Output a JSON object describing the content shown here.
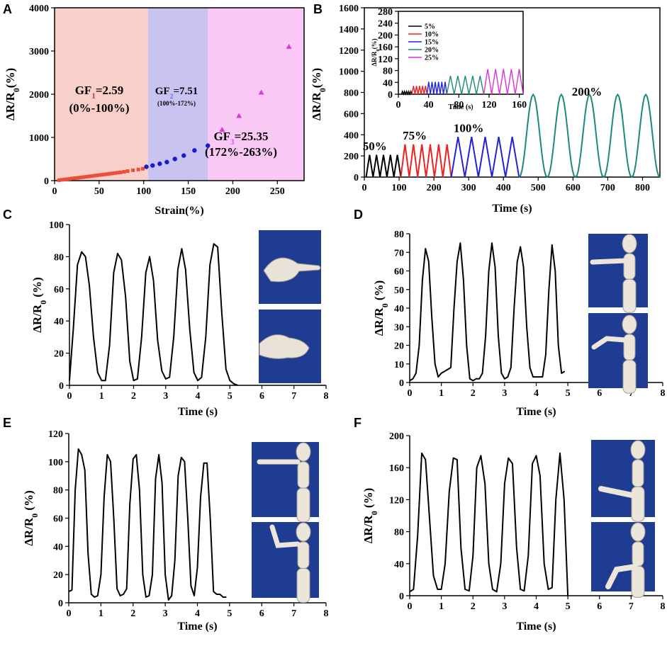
{
  "panels": {
    "A": "A",
    "B": "B",
    "C": "C",
    "D": "D",
    "E": "E",
    "F": "F"
  },
  "colors": {
    "region1": "#f9cfc9",
    "region2": "#c9c3f2",
    "region3": "#f9c8f5",
    "gf1": "#cc3333",
    "gf2": "#6666ee",
    "gf3": "#dd55dd",
    "red": "#e8503a",
    "blue": "#1a1ad0",
    "magenta": "#d83bd8",
    "black": "#000000",
    "r10": "#ee2222",
    "b15": "#2222dd",
    "t20": "#1a8a7a",
    "m25": "#dd33dd",
    "photo": "#1f3c93"
  },
  "chart_data": [
    {
      "id": "A",
      "type": "scatter",
      "xlabel": "Strain(%)",
      "ylabel": "ΔR/R0(%)",
      "xlim": [
        0,
        280
      ],
      "ylim": [
        0,
        4000
      ],
      "xticks": [
        0,
        50,
        100,
        150,
        200,
        250
      ],
      "yticks": [
        0,
        1000,
        2000,
        3000,
        4000
      ],
      "regions": [
        [
          0,
          105
        ],
        [
          105,
          172
        ],
        [
          172,
          280
        ]
      ],
      "annotations": [
        {
          "line1": "GF1=2.59",
          "line2": "(0%-100%)"
        },
        {
          "line1": "GF2=7.51",
          "line2": "(100%-172%)"
        },
        {
          "line1": "GF3=25.35",
          "line2": "(172%-263%)"
        }
      ],
      "series": [
        {
          "name": "region1",
          "marker": "square",
          "x": [
            5,
            8,
            11,
            14,
            17,
            20,
            23,
            26,
            29,
            32,
            35,
            38,
            41,
            44,
            47,
            50,
            53,
            56,
            59,
            62,
            65,
            68,
            71,
            74,
            78,
            82,
            88,
            94,
            99
          ],
          "y": [
            10,
            18,
            26,
            34,
            42,
            50,
            57,
            64,
            72,
            80,
            88,
            96,
            104,
            112,
            120,
            128,
            136,
            144,
            152,
            160,
            168,
            176,
            184,
            192,
            205,
            220,
            240,
            258,
            275
          ]
        },
        {
          "name": "region2",
          "marker": "circle",
          "x": [
            103,
            110,
            118,
            126,
            135,
            145,
            157,
            172
          ],
          "y": [
            320,
            350,
            390,
            430,
            500,
            580,
            700,
            810
          ]
        },
        {
          "name": "region3",
          "marker": "triangle",
          "x": [
            188,
            207,
            232,
            263
          ],
          "y": [
            1180,
            1500,
            2040,
            3100
          ]
        }
      ]
    },
    {
      "id": "B",
      "type": "line",
      "xlabel": "Time (s)",
      "ylabel": "ΔR/R0(%)",
      "xlim": [
        0,
        850
      ],
      "ylim": [
        0,
        1600
      ],
      "xticks": [
        0,
        100,
        200,
        300,
        400,
        500,
        600,
        700,
        800
      ],
      "yticks": [
        0,
        200,
        400,
        600,
        800,
        1000,
        1200,
        1400,
        1600
      ],
      "segments": [
        {
          "name": "50%",
          "start": 5,
          "end": 105,
          "cycles": 5,
          "peak": 210
        },
        {
          "name": "75%",
          "start": 105,
          "end": 250,
          "cycles": 6,
          "peak": 310
        },
        {
          "name": "100%",
          "start": 250,
          "end": 445,
          "cycles": 5,
          "peak": 380
        },
        {
          "name": "200%",
          "start": 445,
          "end": 850,
          "cycles": 5,
          "peak": 780
        }
      ],
      "labels": [
        {
          "text": "50%",
          "x": 30,
          "y": 255
        },
        {
          "text": "75%",
          "x": 145,
          "y": 355
        },
        {
          "text": "100%",
          "x": 300,
          "y": 425
        },
        {
          "text": "200%",
          "x": 640,
          "y": 770
        }
      ],
      "inset": {
        "xlabel": "Time (s)",
        "ylabel": "ΔR/R0(%)",
        "xlim": [
          0,
          165
        ],
        "ylim": [
          0,
          280
        ],
        "xticks": [
          0,
          40,
          80,
          120,
          160
        ],
        "yticks": [
          0,
          40,
          80,
          120,
          160,
          200,
          240,
          280
        ],
        "legend": [
          "5%",
          "10%",
          "15%",
          "20%",
          "25%"
        ],
        "segments": [
          {
            "name": "5%",
            "start": 4,
            "end": 18,
            "cycles": 5,
            "peak": 10
          },
          {
            "name": "10%",
            "start": 18,
            "end": 38,
            "cycles": 5,
            "peak": 28
          },
          {
            "name": "15%",
            "start": 38,
            "end": 64,
            "cycles": 6,
            "peak": 42
          },
          {
            "name": "20%",
            "start": 64,
            "end": 113,
            "cycles": 5,
            "peak": 62
          },
          {
            "name": "25%",
            "start": 113,
            "end": 165,
            "cycles": 5,
            "peak": 85
          }
        ]
      }
    },
    {
      "id": "C",
      "type": "line",
      "xlabel": "Time (s)",
      "ylabel": "ΔR/R0 (%)",
      "xlim": [
        0,
        8
      ],
      "ylim": [
        0,
        100
      ],
      "xticks": [
        0,
        1,
        2,
        3,
        4,
        5,
        6,
        7,
        8
      ],
      "yticks": [
        0,
        20,
        40,
        60,
        80,
        100
      ],
      "x": [
        0,
        0.12,
        0.25,
        0.38,
        0.5,
        0.62,
        0.75,
        0.88,
        1.0,
        1.12,
        1.25,
        1.38,
        1.5,
        1.62,
        1.75,
        1.88,
        2.0,
        2.12,
        2.25,
        2.38,
        2.5,
        2.62,
        2.75,
        2.88,
        3.0,
        3.12,
        3.25,
        3.38,
        3.5,
        3.62,
        3.75,
        3.88,
        4.0,
        4.12,
        4.25,
        4.38,
        4.5,
        4.62,
        4.75,
        4.88,
        5.0,
        5.12,
        5.25
      ],
      "y": [
        3,
        35,
        75,
        83,
        80,
        62,
        30,
        8,
        3,
        3,
        25,
        70,
        82,
        78,
        55,
        15,
        3,
        4,
        30,
        70,
        80,
        65,
        28,
        9,
        4,
        5,
        30,
        72,
        85,
        72,
        35,
        8,
        3,
        5,
        30,
        75,
        88,
        86,
        45,
        10,
        3,
        1,
        0
      ]
    },
    {
      "id": "D",
      "type": "line",
      "xlabel": "Time (s)",
      "ylabel": "ΔR/R0 (%)",
      "xlim": [
        0,
        8
      ],
      "ylim": [
        0,
        80
      ],
      "xticks": [
        0,
        1,
        2,
        3,
        4,
        5,
        6,
        7,
        8
      ],
      "yticks": [
        0,
        10,
        20,
        30,
        40,
        50,
        60,
        70,
        80
      ],
      "x": [
        0,
        0.1,
        0.2,
        0.3,
        0.4,
        0.5,
        0.6,
        0.7,
        0.8,
        0.9,
        1.0,
        1.1,
        1.2,
        1.3,
        1.4,
        1.5,
        1.6,
        1.7,
        1.8,
        1.9,
        2.0,
        2.1,
        2.2,
        2.3,
        2.4,
        2.5,
        2.6,
        2.7,
        2.8,
        2.9,
        3.0,
        3.1,
        3.2,
        3.3,
        3.4,
        3.5,
        3.6,
        3.7,
        3.8,
        3.9,
        4.0,
        4.1,
        4.2,
        4.3,
        4.4,
        4.5,
        4.6,
        4.7,
        4.8,
        4.9
      ],
      "y": [
        1,
        2,
        5,
        20,
        55,
        72,
        65,
        35,
        10,
        3,
        5,
        6,
        7,
        8,
        40,
        65,
        75,
        55,
        20,
        2,
        1,
        2,
        2,
        5,
        25,
        60,
        75,
        62,
        25,
        5,
        2,
        3,
        8,
        40,
        65,
        73,
        62,
        30,
        8,
        3,
        3,
        3,
        3,
        15,
        50,
        74,
        60,
        20,
        5,
        6
      ]
    },
    {
      "id": "E",
      "type": "line",
      "xlabel": "Time (s)",
      "ylabel": "ΔR/R0 (%)",
      "xlim": [
        0,
        8
      ],
      "ylim": [
        0,
        120
      ],
      "xticks": [
        0,
        1,
        2,
        3,
        4,
        5,
        6,
        7,
        8
      ],
      "yticks": [
        0,
        20,
        40,
        60,
        80,
        100,
        120
      ],
      "x": [
        0,
        0.1,
        0.2,
        0.3,
        0.4,
        0.5,
        0.6,
        0.7,
        0.8,
        0.9,
        1.0,
        1.1,
        1.2,
        1.3,
        1.4,
        1.5,
        1.6,
        1.7,
        1.8,
        1.9,
        2.0,
        2.1,
        2.2,
        2.3,
        2.4,
        2.5,
        2.6,
        2.7,
        2.8,
        2.9,
        3.0,
        3.1,
        3.2,
        3.3,
        3.4,
        3.5,
        3.6,
        3.7,
        3.8,
        3.9,
        4.0,
        4.1,
        4.2,
        4.3,
        4.4,
        4.5,
        4.6,
        4.7,
        4.8,
        4.9
      ],
      "y": [
        8,
        9,
        80,
        109,
        105,
        94,
        35,
        6,
        4,
        5,
        20,
        75,
        105,
        100,
        60,
        10,
        5,
        6,
        10,
        70,
        102,
        105,
        80,
        20,
        4,
        5,
        20,
        88,
        105,
        85,
        20,
        2,
        5,
        30,
        90,
        103,
        100,
        60,
        12,
        5,
        25,
        75,
        99,
        99,
        60,
        8,
        6,
        6,
        4,
        4
      ]
    },
    {
      "id": "F",
      "type": "line",
      "xlabel": "Time (s)",
      "ylabel": "ΔR/R0 (%)",
      "xlim": [
        0,
        8
      ],
      "ylim": [
        0,
        200
      ],
      "xticks": [
        0,
        1,
        2,
        3,
        4,
        5,
        6,
        7,
        8
      ],
      "yticks": [
        0,
        40,
        80,
        120,
        160,
        200
      ],
      "x": [
        0,
        0.12,
        0.25,
        0.38,
        0.5,
        0.62,
        0.75,
        0.88,
        1.0,
        1.12,
        1.25,
        1.38,
        1.5,
        1.62,
        1.75,
        1.88,
        2.0,
        2.12,
        2.25,
        2.38,
        2.5,
        2.62,
        2.75,
        2.88,
        3.0,
        3.12,
        3.25,
        3.38,
        3.5,
        3.62,
        3.75,
        3.88,
        4.0,
        4.12,
        4.25,
        4.38,
        4.5,
        4.62,
        4.75,
        4.88,
        5.0
      ],
      "y": [
        5,
        8,
        75,
        178,
        170,
        100,
        25,
        8,
        8,
        40,
        130,
        172,
        170,
        60,
        8,
        6,
        50,
        160,
        175,
        140,
        40,
        8,
        5,
        40,
        140,
        172,
        165,
        60,
        8,
        6,
        50,
        165,
        175,
        150,
        40,
        8,
        10,
        120,
        178,
        120,
        0
      ]
    }
  ]
}
